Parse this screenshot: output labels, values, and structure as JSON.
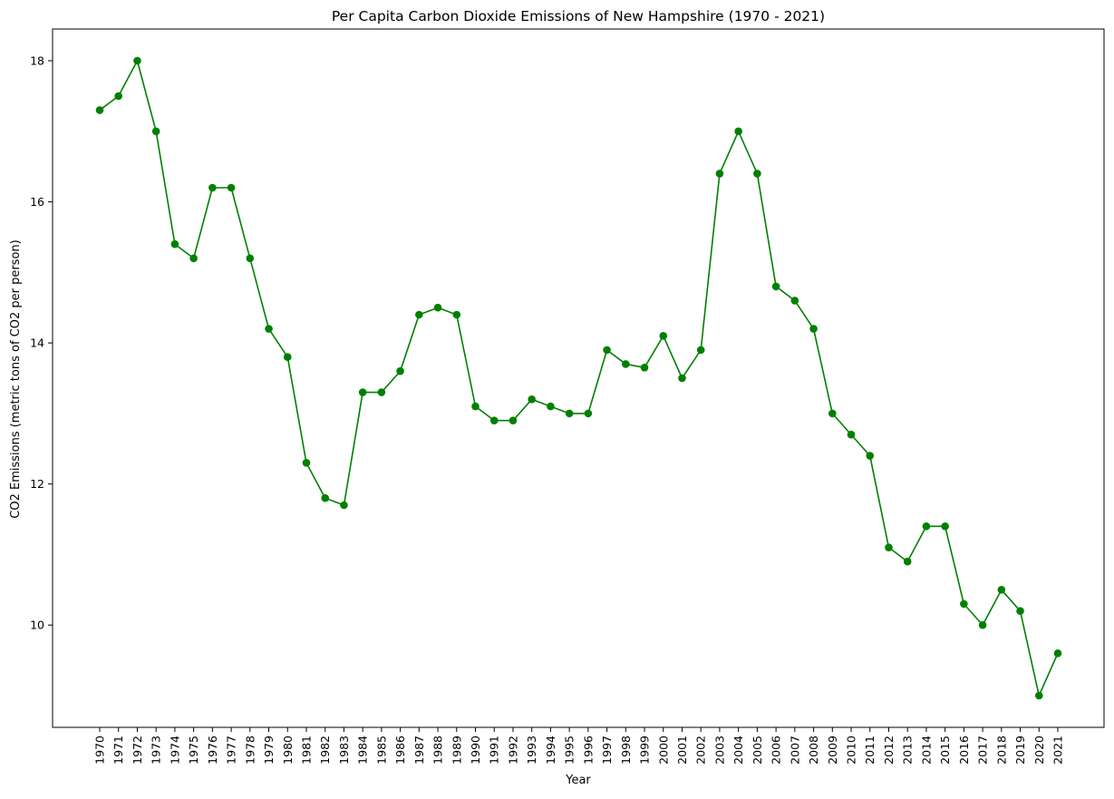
{
  "chart_data": {
    "type": "line",
    "title": "Per Capita Carbon Dioxide Emissions of New Hampshire (1970 - 2021)",
    "xlabel": "Year",
    "ylabel": "CO2 Emissions (metric tons of CO2 per person)",
    "x": [
      "1970",
      "1971",
      "1972",
      "1973",
      "1974",
      "1975",
      "1976",
      "1977",
      "1978",
      "1979",
      "1980",
      "1981",
      "1982",
      "1983",
      "1984",
      "1985",
      "1986",
      "1987",
      "1988",
      "1989",
      "1990",
      "1991",
      "1992",
      "1993",
      "1994",
      "1995",
      "1996",
      "1997",
      "1998",
      "1999",
      "2000",
      "2001",
      "2002",
      "2003",
      "2004",
      "2005",
      "2006",
      "2007",
      "2008",
      "2009",
      "2010",
      "2011",
      "2012",
      "2013",
      "2014",
      "2015",
      "2016",
      "2017",
      "2018",
      "2019",
      "2020",
      "2021"
    ],
    "series": [
      {
        "values": [
          17.3,
          17.5,
          18.0,
          17.0,
          15.4,
          15.2,
          16.2,
          16.2,
          15.2,
          14.2,
          13.8,
          12.3,
          11.8,
          11.7,
          13.3,
          13.3,
          13.6,
          14.4,
          14.5,
          14.4,
          13.1,
          12.9,
          12.9,
          13.2,
          13.1,
          13.0,
          13.0,
          13.9,
          13.7,
          13.65,
          14.1,
          13.5,
          13.9,
          16.4,
          17.0,
          16.4,
          14.8,
          14.6,
          14.2,
          13.0,
          12.7,
          12.4,
          11.1,
          10.9,
          11.4,
          11.4,
          10.3,
          10.0,
          10.5,
          10.2,
          9.0,
          9.6
        ],
        "color": "#008000",
        "marker": "circle"
      }
    ],
    "ylim": [
      8.55,
      18.45
    ],
    "yticks": [
      "10",
      "12",
      "14",
      "16",
      "18"
    ],
    "grid": false,
    "legend": "none"
  }
}
